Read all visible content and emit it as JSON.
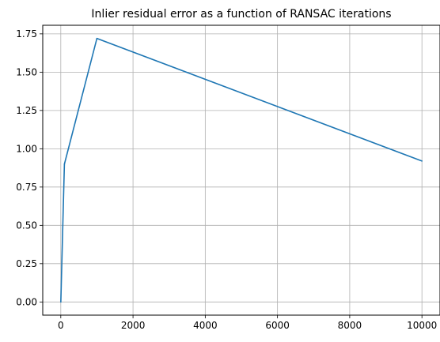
{
  "chart_data": {
    "type": "line",
    "title": "Inlier residual error as a function of RANSAC iterations",
    "xlabel": "",
    "ylabel": "",
    "x": [
      1,
      100,
      1000,
      10000
    ],
    "series": [
      {
        "values": [
          0.0,
          0.9,
          1.72,
          0.92
        ],
        "color": "#1f77b4"
      }
    ],
    "xlim": [
      -500,
      10500
    ],
    "ylim": [
      -0.086,
      1.806
    ],
    "xticks": [
      0,
      2000,
      4000,
      6000,
      8000,
      10000
    ],
    "xtick_labels": [
      "0",
      "2000",
      "4000",
      "6000",
      "8000",
      "10000"
    ],
    "yticks": [
      0.0,
      0.25,
      0.5,
      0.75,
      1.0,
      1.25,
      1.5,
      1.75
    ],
    "ytick_labels": [
      "0.00",
      "0.25",
      "0.50",
      "0.75",
      "1.00",
      "1.25",
      "1.50",
      "1.75"
    ],
    "grid": true,
    "legend": "none"
  }
}
